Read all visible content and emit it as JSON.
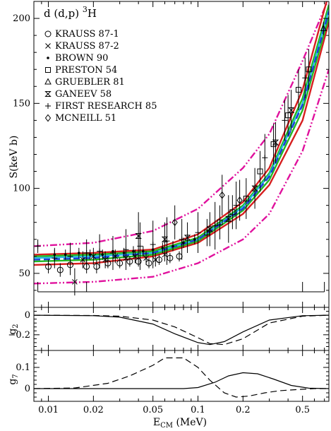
{
  "chart_data": {
    "type": "scatter",
    "title": "d (d,p) ³H",
    "title_parts": {
      "main": "d (d,p) ",
      "sup": "3",
      "tail": "H"
    },
    "xlabel": "E",
    "xlabel_sub": "CM",
    "xlabel_unit": " (MeV)",
    "xscale": "log",
    "xlim": [
      0.008,
      0.75
    ],
    "x_ticks": [
      0.01,
      0.02,
      0.05,
      0.1,
      0.2,
      0.5
    ],
    "x_tick_labels": [
      "0.01",
      "0.02",
      "0.05",
      "0.1",
      "0.2",
      "0.5"
    ],
    "panels": [
      {
        "id": "main",
        "ylabel": "S(keV b)",
        "ylim": [
          30,
          210
        ],
        "y_ticks": [
          50,
          100,
          150,
          200
        ],
        "y_tick_labels": [
          "50",
          "100",
          "150",
          "200"
        ],
        "legend_position": "top-left",
        "legend": [
          {
            "symbol": "circle",
            "label": "KRAUSS 87-1"
          },
          {
            "symbol": "cross",
            "label": "KRAUSS 87-2"
          },
          {
            "symbol": "dot",
            "label": "BROWN 90"
          },
          {
            "symbol": "square",
            "label": "PRESTON 54"
          },
          {
            "symbol": "triangle",
            "label": "GRUEBLER 81"
          },
          {
            "symbol": "bowtie",
            "label": "GANEEV 58"
          },
          {
            "symbol": "plus",
            "label": "FIRST RESEARCH 85"
          },
          {
            "symbol": "diamond",
            "label": "MCNEILL 51"
          }
        ],
        "curves": [
          {
            "color": "#e0119d",
            "dash": "dashdotdot",
            "x": [
              0.008,
              0.02,
              0.05,
              0.1,
              0.2,
              0.3,
              0.5,
              0.75
            ],
            "y": [
              66,
              68,
              75,
              88,
              112,
              132,
              175,
              212
            ]
          },
          {
            "color": "#e0119d",
            "dash": "dashdotdot",
            "x": [
              0.008,
              0.02,
              0.05,
              0.1,
              0.2,
              0.3,
              0.5,
              0.75
            ],
            "y": [
              44,
              45,
              48,
              56,
              70,
              85,
              122,
              170
            ]
          },
          {
            "color": "#d61f1f",
            "dash": "solid",
            "x": [
              0.008,
              0.02,
              0.05,
              0.1,
              0.2,
              0.3,
              0.5,
              0.75
            ],
            "y": [
              61,
              62,
              64,
              73,
              92,
              112,
              158,
              215
            ]
          },
          {
            "color": "#d61f1f",
            "dash": "solid",
            "x": [
              0.008,
              0.02,
              0.05,
              0.1,
              0.2,
              0.3,
              0.5,
              0.75
            ],
            "y": [
              55,
              56,
              60,
              68,
              85,
              102,
              140,
              198
            ]
          },
          {
            "color": "#22b822",
            "dash": "solid",
            "x": [
              0.008,
              0.02,
              0.05,
              0.1,
              0.2,
              0.3,
              0.5,
              0.75
            ],
            "y": [
              60,
              61,
              63,
              71,
              90,
              109,
              153,
              208
            ]
          },
          {
            "color": "#22b822",
            "dash": "solid",
            "x": [
              0.008,
              0.02,
              0.05,
              0.1,
              0.2,
              0.3,
              0.5,
              0.75
            ],
            "y": [
              57,
              58,
              61,
              69,
              87,
              105,
              146,
              201
            ]
          },
          {
            "color": "#27b8e6",
            "dash": "solid",
            "x": [
              0.008,
              0.02,
              0.05,
              0.1,
              0.2,
              0.3,
              0.5,
              0.75
            ],
            "y": [
              59,
              60,
              62,
              70,
              89,
              108,
              150,
              205
            ]
          },
          {
            "color": "#1f3fd6",
            "dash": "dashed",
            "x": [
              0.008,
              0.02,
              0.05,
              0.1,
              0.2,
              0.3,
              0.5,
              0.75
            ],
            "y": [
              58,
              59,
              62,
              70,
              88,
              107,
              149,
              204
            ]
          }
        ],
        "points": [
          {
            "set": "circle",
            "x": 0.01,
            "y": 54,
            "err": 4
          },
          {
            "set": "circle",
            "x": 0.012,
            "y": 52,
            "err": 4
          },
          {
            "set": "circle",
            "x": 0.014,
            "y": 55,
            "err": 6
          },
          {
            "set": "circle",
            "x": 0.018,
            "y": 54,
            "err": 4
          },
          {
            "set": "circle",
            "x": 0.021,
            "y": 54,
            "err": 4
          },
          {
            "set": "circle",
            "x": 0.025,
            "y": 56,
            "err": 3
          },
          {
            "set": "circle",
            "x": 0.03,
            "y": 56,
            "err": 3
          },
          {
            "set": "circle",
            "x": 0.035,
            "y": 57,
            "err": 3
          },
          {
            "set": "circle",
            "x": 0.04,
            "y": 57,
            "err": 3
          },
          {
            "set": "circle",
            "x": 0.047,
            "y": 56,
            "err": 3
          },
          {
            "set": "circle",
            "x": 0.055,
            "y": 58,
            "err": 3
          },
          {
            "set": "circle",
            "x": 0.065,
            "y": 59,
            "err": 3
          },
          {
            "set": "circle",
            "x": 0.075,
            "y": 60,
            "err": 3
          },
          {
            "set": "cross",
            "x": 0.015,
            "y": 45,
            "err": 8
          },
          {
            "set": "cross",
            "x": 0.017,
            "y": 58,
            "err": 5
          },
          {
            "set": "cross",
            "x": 0.02,
            "y": 60,
            "err": 5
          },
          {
            "set": "cross",
            "x": 0.024,
            "y": 58,
            "err": 5
          },
          {
            "set": "cross",
            "x": 0.028,
            "y": 60,
            "err": 4
          },
          {
            "set": "cross",
            "x": 0.033,
            "y": 59,
            "err": 4
          },
          {
            "set": "cross",
            "x": 0.038,
            "y": 60,
            "err": 4
          },
          {
            "set": "cross",
            "x": 0.045,
            "y": 59,
            "err": 4
          },
          {
            "set": "cross",
            "x": 0.052,
            "y": 58,
            "err": 4
          },
          {
            "set": "cross",
            "x": 0.06,
            "y": 61,
            "err": 4
          },
          {
            "set": "dot",
            "x": 0.011,
            "y": 61,
            "err": 3
          },
          {
            "set": "dot",
            "x": 0.013,
            "y": 61,
            "err": 3
          },
          {
            "set": "dot",
            "x": 0.016,
            "y": 62,
            "err": 3
          },
          {
            "set": "dot",
            "x": 0.019,
            "y": 61,
            "err": 3
          },
          {
            "set": "dot",
            "x": 0.023,
            "y": 61,
            "err": 3
          },
          {
            "set": "dot",
            "x": 0.027,
            "y": 63,
            "err": 3
          },
          {
            "set": "dot",
            "x": 0.032,
            "y": 62,
            "err": 3
          },
          {
            "set": "dot",
            "x": 0.037,
            "y": 63,
            "err": 3
          },
          {
            "set": "dot",
            "x": 0.043,
            "y": 63,
            "err": 3
          },
          {
            "set": "dot",
            "x": 0.05,
            "y": 64,
            "err": 3
          },
          {
            "set": "dot",
            "x": 0.058,
            "y": 65,
            "err": 3
          },
          {
            "set": "dot",
            "x": 0.068,
            "y": 66,
            "err": 3
          },
          {
            "set": "dot",
            "x": 0.08,
            "y": 68,
            "err": 3
          },
          {
            "set": "dot",
            "x": 0.095,
            "y": 70,
            "err": 3
          },
          {
            "set": "square",
            "x": 0.115,
            "y": 74,
            "err": 8
          },
          {
            "set": "square",
            "x": 0.14,
            "y": 80,
            "err": 10
          },
          {
            "set": "square",
            "x": 0.17,
            "y": 86,
            "err": 10
          },
          {
            "set": "square",
            "x": 0.21,
            "y": 94,
            "err": 12
          },
          {
            "set": "square",
            "x": 0.26,
            "y": 110,
            "err": 12
          },
          {
            "set": "square",
            "x": 0.32,
            "y": 126,
            "err": 12
          },
          {
            "set": "square",
            "x": 0.4,
            "y": 143,
            "err": 12
          },
          {
            "set": "square",
            "x": 0.47,
            "y": 158,
            "err": 12
          },
          {
            "set": "square",
            "x": 0.55,
            "y": 170,
            "err": 12
          },
          {
            "set": "triangle",
            "x": 0.69,
            "y": 194,
            "err": 4
          },
          {
            "set": "bowtie",
            "x": 0.04,
            "y": 72,
            "err": 14
          },
          {
            "set": "bowtie",
            "x": 0.06,
            "y": 70,
            "err": 10
          },
          {
            "set": "bowtie",
            "x": 0.085,
            "y": 71,
            "err": 9
          },
          {
            "set": "bowtie",
            "x": 0.12,
            "y": 76,
            "err": 10
          },
          {
            "set": "bowtie",
            "x": 0.16,
            "y": 82,
            "err": 14
          },
          {
            "set": "bowtie",
            "x": 0.24,
            "y": 100,
            "err": 12
          },
          {
            "set": "bowtie",
            "x": 0.33,
            "y": 127,
            "err": 12
          },
          {
            "set": "bowtie",
            "x": 0.42,
            "y": 146,
            "err": 12
          },
          {
            "set": "plus",
            "x": 0.0085,
            "y": 66,
            "err": 4
          },
          {
            "set": "plus",
            "x": 0.011,
            "y": 59,
            "err": 6
          },
          {
            "set": "plus",
            "x": 0.014,
            "y": 60,
            "err": 8
          },
          {
            "set": "plus",
            "x": 0.018,
            "y": 62,
            "err": 8
          },
          {
            "set": "plus",
            "x": 0.022,
            "y": 63,
            "err": 10
          },
          {
            "set": "plus",
            "x": 0.027,
            "y": 62,
            "err": 10
          },
          {
            "set": "plus",
            "x": 0.033,
            "y": 64,
            "err": 12
          },
          {
            "set": "plus",
            "x": 0.041,
            "y": 66,
            "err": 14
          },
          {
            "set": "plus",
            "x": 0.05,
            "y": 67,
            "err": 14
          },
          {
            "set": "plus",
            "x": 0.062,
            "y": 69,
            "err": 14
          },
          {
            "set": "plus",
            "x": 0.078,
            "y": 70,
            "err": 12
          },
          {
            "set": "plus",
            "x": 0.1,
            "y": 74,
            "err": 12
          },
          {
            "set": "plus",
            "x": 0.13,
            "y": 78,
            "err": 14
          },
          {
            "set": "plus",
            "x": 0.18,
            "y": 90,
            "err": 14
          },
          {
            "set": "plus",
            "x": 0.28,
            "y": 118,
            "err": 14
          },
          {
            "set": "plus",
            "x": 0.38,
            "y": 140,
            "err": 12
          },
          {
            "set": "plus",
            "x": 0.52,
            "y": 165,
            "err": 12
          },
          {
            "set": "diamond",
            "x": 0.07,
            "y": 80,
            "err": 10
          },
          {
            "set": "diamond",
            "x": 0.145,
            "y": 96,
            "err": 12
          },
          {
            "set": "diamond",
            "x": 0.19,
            "y": 93,
            "err": 12
          }
        ],
        "bracket_marks": [
          0.0085,
          0.018,
          0.5,
          0.7
        ]
      },
      {
        "id": "g2",
        "ylabel": "g",
        "ylabel_sub": "2",
        "ylim": [
          -0.36,
          0.08
        ],
        "y_ticks": [
          0,
          -0.2
        ],
        "y_tick_labels": [
          "0",
          "−0.2"
        ],
        "curves": [
          {
            "dash": "solid",
            "x": [
              0.008,
              0.02,
              0.03,
              0.05,
              0.07,
              0.1,
              0.12,
              0.15,
              0.2,
              0.3,
              0.5,
              0.75
            ],
            "y": [
              0,
              -0.005,
              -0.02,
              -0.09,
              -0.19,
              -0.28,
              -0.3,
              -0.27,
              -0.17,
              -0.05,
              -0.005,
              0
            ]
          },
          {
            "dash": "dashed",
            "x": [
              0.008,
              0.02,
              0.03,
              0.05,
              0.07,
              0.1,
              0.12,
              0.15,
              0.2,
              0.3,
              0.5,
              0.75
            ],
            "y": [
              0,
              -0.003,
              -0.01,
              -0.05,
              -0.12,
              -0.23,
              -0.29,
              -0.3,
              -0.24,
              -0.08,
              -0.01,
              0
            ]
          }
        ]
      },
      {
        "id": "g7",
        "ylabel": "g",
        "ylabel_sub": "7",
        "ylim": [
          -0.06,
          0.18
        ],
        "y_ticks": [
          0,
          0.1
        ],
        "y_tick_labels": [
          "0",
          "0.1"
        ],
        "curves": [
          {
            "dash": "solid",
            "x": [
              0.008,
              0.05,
              0.08,
              0.1,
              0.13,
              0.16,
              0.2,
              0.25,
              0.32,
              0.42,
              0.55,
              0.75
            ],
            "y": [
              0,
              0,
              0,
              0.005,
              0.03,
              0.06,
              0.075,
              0.07,
              0.045,
              0.015,
              0.002,
              0
            ]
          },
          {
            "dash": "dashed",
            "x": [
              0.008,
              0.015,
              0.025,
              0.035,
              0.05,
              0.06,
              0.08,
              0.1,
              0.12,
              0.15,
              0.18,
              0.22,
              0.28,
              0.35,
              0.45,
              0.6,
              0.75
            ],
            "y": [
              0,
              0.003,
              0.025,
              0.06,
              0.11,
              0.145,
              0.145,
              0.1,
              0.04,
              -0.02,
              -0.04,
              -0.035,
              -0.02,
              -0.01,
              -0.005,
              0,
              0
            ]
          }
        ]
      }
    ]
  }
}
